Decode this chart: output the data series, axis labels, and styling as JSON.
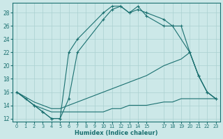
{
  "xlabel": "Humidex (Indice chaleur)",
  "ylabel": "",
  "bg_color": "#cce8e8",
  "line_color": "#1a7070",
  "grid_color": "#aad0d0",
  "ylim": [
    11.5,
    29.5
  ],
  "xlim": [
    -0.5,
    23.5
  ],
  "yticks": [
    12,
    14,
    16,
    18,
    20,
    22,
    24,
    26,
    28
  ],
  "xticks": [
    0,
    1,
    2,
    3,
    4,
    5,
    6,
    7,
    8,
    9,
    10,
    11,
    12,
    13,
    14,
    15,
    17,
    18,
    19,
    20,
    21,
    22,
    23
  ],
  "xtick_labels": [
    "0",
    "1",
    "2",
    "3",
    "4",
    "5",
    "6",
    "7",
    "8",
    "9",
    "10",
    "11",
    "12",
    "13",
    "14",
    "15",
    "17",
    "18",
    "19",
    "20",
    "21",
    "22",
    "23"
  ],
  "series": [
    {
      "x": [
        0,
        1,
        2,
        3,
        4,
        5,
        6,
        7,
        10,
        11,
        12,
        13,
        14,
        15,
        17,
        18,
        20,
        21,
        22,
        23
      ],
      "y": [
        16,
        15,
        14,
        13,
        12,
        12,
        22,
        24,
        28,
        29,
        29,
        28,
        29,
        27.5,
        26,
        26,
        22,
        18.5,
        16,
        15
      ],
      "marker": true
    },
    {
      "x": [
        0,
        2,
        3,
        4,
        5,
        6,
        7,
        10,
        11,
        12,
        13,
        14,
        15,
        17,
        18,
        19,
        20,
        21,
        22,
        23
      ],
      "y": [
        16,
        14,
        13,
        12,
        12,
        15,
        22,
        27,
        28.5,
        29,
        28,
        28.5,
        28,
        27,
        26,
        26,
        22,
        18.5,
        16,
        15
      ],
      "marker": true
    },
    {
      "x": [
        0,
        2,
        3,
        4,
        5,
        6,
        7,
        8,
        9,
        10,
        11,
        12,
        13,
        14,
        15,
        17,
        18,
        19,
        20,
        21,
        22,
        23
      ],
      "y": [
        16,
        14.5,
        14,
        13.5,
        13.5,
        14,
        14.5,
        15,
        15.5,
        16,
        16.5,
        17,
        17.5,
        18,
        18.5,
        20,
        20.5,
        21,
        22,
        18.5,
        16,
        15
      ],
      "marker": false
    },
    {
      "x": [
        0,
        2,
        3,
        4,
        5,
        6,
        7,
        8,
        9,
        10,
        11,
        12,
        13,
        14,
        15,
        17,
        18,
        19,
        20,
        21,
        22,
        23
      ],
      "y": [
        16,
        14,
        13.5,
        13,
        13,
        13,
        13,
        13,
        13,
        13,
        13.5,
        13.5,
        14,
        14,
        14,
        14.5,
        14.5,
        15,
        15,
        15,
        15,
        15
      ],
      "marker": false
    }
  ]
}
